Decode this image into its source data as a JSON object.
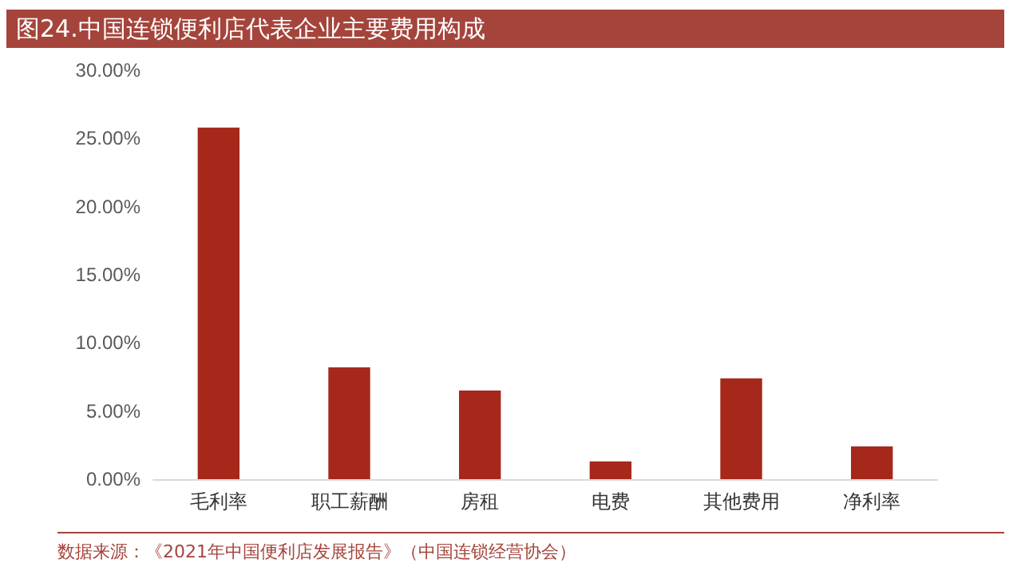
{
  "chart_data": {
    "type": "bar",
    "title": "图24.中国连锁便利店代表企业主要费用构成",
    "categories": [
      "毛利率",
      "职工薪酬",
      "房租",
      "电费",
      "其他费用",
      "净利率"
    ],
    "values": [
      25.8,
      8.2,
      6.5,
      1.3,
      7.4,
      2.4
    ],
    "color": "#a5281b",
    "ylim": [
      0,
      30
    ],
    "yticks": [
      {
        "value": 0,
        "label": "0.00%"
      },
      {
        "value": 5,
        "label": "5.00%"
      },
      {
        "value": 10,
        "label": "10.00%"
      },
      {
        "value": 15,
        "label": "15.00%"
      },
      {
        "value": 20,
        "label": "20.00%"
      },
      {
        "value": 25,
        "label": "25.00%"
      },
      {
        "value": 30,
        "label": "30.00%"
      }
    ],
    "grid": false,
    "annotations": [
      "数据来源：《2021年中国便利店发展报告》（中国连锁经营协会）"
    ]
  }
}
